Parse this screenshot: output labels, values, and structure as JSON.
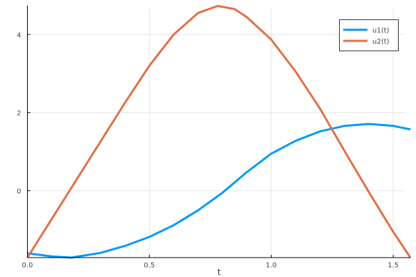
{
  "chart_data": {
    "type": "line",
    "title": "",
    "xlabel": "t",
    "ylabel": "",
    "xlim": [
      0,
      1.5708
    ],
    "ylim": [
      -1.71,
      4.74
    ],
    "xticks": [
      0,
      0.5,
      1.0,
      1.5
    ],
    "xtick_labels": [
      "0.0",
      "0.5",
      "1.0",
      "1.5"
    ],
    "yticks": [
      0,
      2,
      4
    ],
    "ytick_labels": [
      "0",
      "2",
      "4"
    ],
    "grid": true,
    "legend": "top-right",
    "series": [
      {
        "name": "u1(t)",
        "color": "#009af9",
        "x": [
          0,
          0.1,
          0.18,
          0.3,
          0.4,
          0.5,
          0.6,
          0.7,
          0.8,
          0.9,
          1.0,
          1.1,
          1.2,
          1.3,
          1.4,
          1.5,
          1.5708
        ],
        "y": [
          -1.6,
          -1.68,
          -1.71,
          -1.59,
          -1.41,
          -1.18,
          -0.88,
          -0.5,
          -0.05,
          0.48,
          0.95,
          1.28,
          1.52,
          1.66,
          1.71,
          1.66,
          1.57
        ]
      },
      {
        "name": "u2(t)",
        "color": "#e26f46",
        "x": [
          0,
          0.1,
          0.2,
          0.3,
          0.4,
          0.5,
          0.6,
          0.7,
          0.78,
          0.85,
          0.9,
          1.0,
          1.1,
          1.2,
          1.3,
          1.4,
          1.5,
          1.5708
        ],
        "y": [
          -1.71,
          -0.72,
          0.27,
          1.26,
          2.25,
          3.2,
          4.0,
          4.55,
          4.73,
          4.65,
          4.44,
          3.87,
          3.05,
          2.1,
          1.02,
          -0.03,
          -1.05,
          -1.71
        ]
      }
    ]
  }
}
